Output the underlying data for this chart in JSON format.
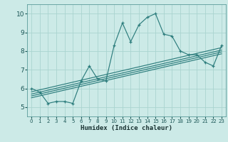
{
  "xlabel": "Humidex (Indice chaleur)",
  "bg_color": "#cceae7",
  "grid_color": "#aad4d0",
  "line_color": "#2d7d7d",
  "xlim": [
    -0.5,
    23.5
  ],
  "ylim": [
    4.5,
    10.5
  ],
  "xticks": [
    0,
    1,
    2,
    3,
    4,
    5,
    6,
    7,
    8,
    9,
    10,
    11,
    12,
    13,
    14,
    15,
    16,
    17,
    18,
    19,
    20,
    21,
    22,
    23
  ],
  "yticks": [
    5,
    6,
    7,
    8,
    9,
    10
  ],
  "data_x": [
    0,
    1,
    2,
    3,
    4,
    5,
    6,
    7,
    8,
    9,
    10,
    11,
    12,
    13,
    14,
    15,
    16,
    17,
    18,
    19,
    20,
    21,
    22,
    23
  ],
  "data_y": [
    6.0,
    5.8,
    5.2,
    5.3,
    5.3,
    5.2,
    6.4,
    7.2,
    6.5,
    6.4,
    8.3,
    9.5,
    8.5,
    9.4,
    9.8,
    10.0,
    8.9,
    8.8,
    8.0,
    7.8,
    7.8,
    7.4,
    7.2,
    8.3
  ],
  "reg_lines": [
    {
      "x0": 0,
      "y0": 5.5,
      "x1": 23,
      "y1": 7.85
    },
    {
      "x0": 0,
      "y0": 5.6,
      "x1": 23,
      "y1": 7.95
    },
    {
      "x0": 0,
      "y0": 5.7,
      "x1": 23,
      "y1": 8.05
    },
    {
      "x0": 0,
      "y0": 5.82,
      "x1": 23,
      "y1": 8.18
    }
  ]
}
